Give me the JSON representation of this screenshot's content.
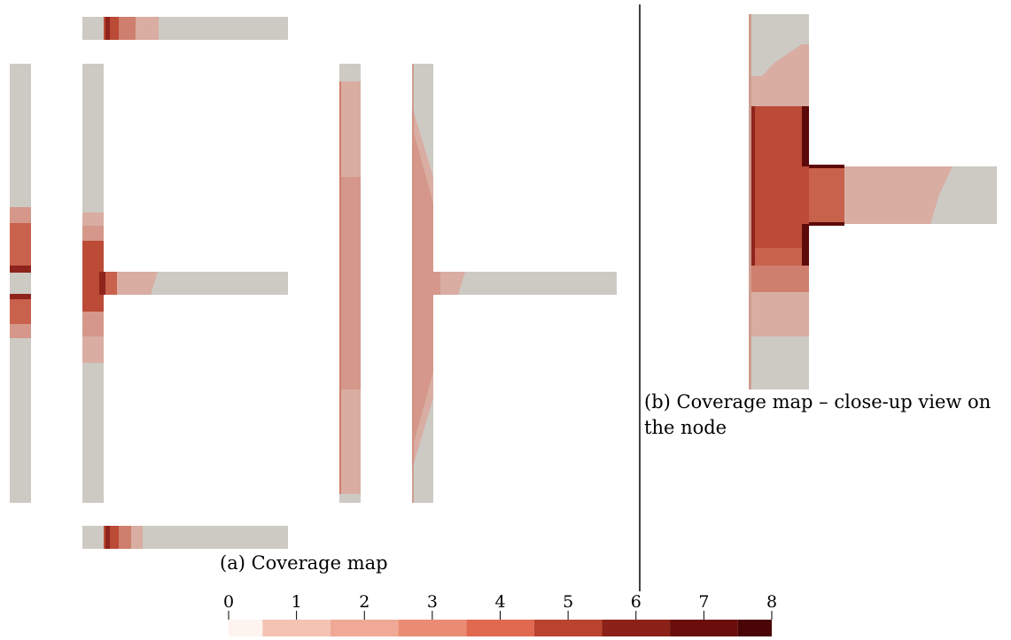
{
  "captions": {
    "a": "(a) Coverage map",
    "b": "(b) Coverage map – close-up view on the node"
  },
  "colorbar": {
    "ticks": [
      "0",
      "1",
      "2",
      "3",
      "4",
      "5",
      "6",
      "7",
      "8"
    ],
    "colors": [
      "#fdf3ef",
      "#f4c3b4",
      "#efa996",
      "#ea8c73",
      "#e0694f",
      "#b9432f",
      "#8b2118",
      "#6a0e0c",
      "#4a0507"
    ]
  },
  "palette": {
    "structure_gray": "#cdcac4",
    "level_1": "#d9ada2",
    "level_2": "#d4978a",
    "level_3": "#cf7f6e",
    "level_4": "#c8624c",
    "level_5": "#bb4a36",
    "level_6": "#8e241c",
    "level_7": "#5d0a0a",
    "divider": "#000000"
  }
}
